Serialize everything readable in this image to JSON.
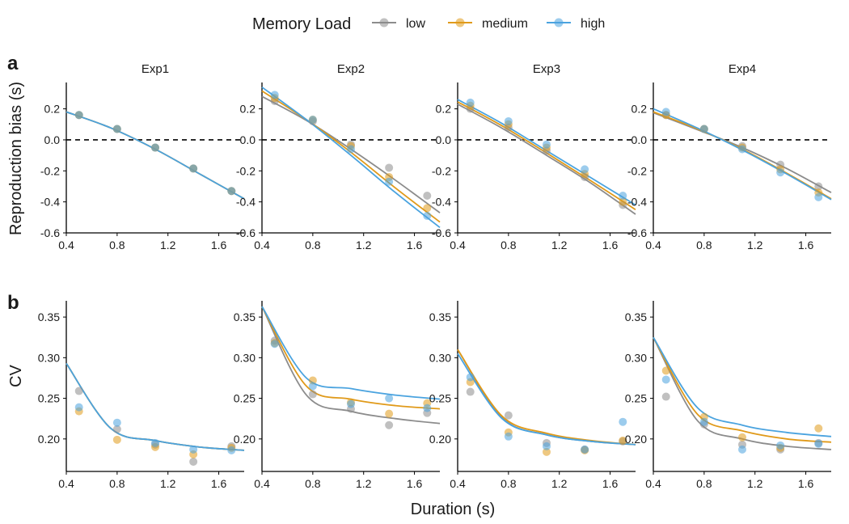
{
  "legend": {
    "title": "Memory Load",
    "placement": "top-center",
    "items": [
      {
        "label": "low",
        "color": "#8c8c8c"
      },
      {
        "label": "medium",
        "color": "#e09a1a"
      },
      {
        "label": "high",
        "color": "#4aa3df"
      }
    ]
  },
  "panel_labels": [
    "a",
    "b"
  ],
  "xlabel": "Duration (s)",
  "chart_data": [
    {
      "type": "line",
      "id": "a",
      "ylabel": "Reproduction bias (s)",
      "facets": [
        "Exp1",
        "Exp2",
        "Exp3",
        "Exp4"
      ],
      "xlim": [
        0.4,
        1.8
      ],
      "ylim": [
        -0.6,
        0.37
      ],
      "xticks": [
        0.4,
        0.8,
        1.2,
        1.6
      ],
      "yticks": [
        -0.6,
        -0.4,
        -0.2,
        0.0,
        0.2
      ],
      "yticklabels": [
        "-0.6",
        "-0.4",
        "-0.2",
        "0.0",
        "0.2"
      ],
      "reference_line": {
        "y": 0,
        "style": "dashed"
      },
      "x_points": [
        0.5,
        0.8,
        1.1,
        1.4,
        1.7
      ],
      "panels": [
        {
          "facet": "Exp1",
          "series": [
            {
              "name": "low",
              "points": [
                0.16,
                0.07,
                -0.05,
                -0.185,
                -0.33
              ],
              "curve": [
                0.18,
                0.077,
                -0.06,
                -0.22,
                -0.38
              ]
            },
            {
              "name": "medium",
              "points": [
                0.16,
                0.07,
                -0.05,
                -0.185,
                -0.33
              ],
              "curve": [
                0.18,
                0.077,
                -0.06,
                -0.22,
                -0.38
              ]
            },
            {
              "name": "high",
              "points": [
                0.16,
                0.07,
                -0.05,
                -0.185,
                -0.33
              ],
              "curve": [
                0.18,
                0.077,
                -0.06,
                -0.22,
                -0.38
              ]
            }
          ]
        },
        {
          "facet": "Exp2",
          "series": [
            {
              "name": "low",
              "points": [
                0.25,
                0.12,
                -0.03,
                -0.18,
                -0.36
              ],
              "curve": [
                0.28,
                0.125,
                -0.06,
                -0.26,
                -0.47
              ]
            },
            {
              "name": "medium",
              "points": [
                0.27,
                0.13,
                -0.04,
                -0.24,
                -0.44
              ],
              "curve": [
                0.315,
                0.13,
                -0.08,
                -0.31,
                -0.53
              ]
            },
            {
              "name": "high",
              "points": [
                0.29,
                0.13,
                -0.06,
                -0.27,
                -0.49
              ],
              "curve": [
                0.34,
                0.13,
                -0.1,
                -0.34,
                -0.565
              ]
            }
          ]
        },
        {
          "facet": "Exp3",
          "series": [
            {
              "name": "low",
              "points": [
                0.2,
                0.08,
                -0.07,
                -0.24,
                -0.42
              ],
              "curve": [
                0.23,
                0.075,
                -0.1,
                -0.28,
                -0.48
              ]
            },
            {
              "name": "medium",
              "points": [
                0.22,
                0.1,
                -0.05,
                -0.22,
                -0.4
              ],
              "curve": [
                0.245,
                0.09,
                -0.085,
                -0.265,
                -0.45
              ]
            },
            {
              "name": "high",
              "points": [
                0.24,
                0.12,
                -0.03,
                -0.19,
                -0.36
              ],
              "curve": [
                0.26,
                0.105,
                -0.07,
                -0.245,
                -0.42
              ]
            }
          ]
        },
        {
          "facet": "Exp4",
          "series": [
            {
              "name": "low",
              "points": [
                0.16,
                0.07,
                -0.04,
                -0.16,
                -0.3
              ],
              "curve": [
                0.175,
                0.065,
                -0.05,
                -0.185,
                -0.34
              ]
            },
            {
              "name": "medium",
              "points": [
                0.16,
                0.07,
                -0.05,
                -0.19,
                -0.34
              ],
              "curve": [
                0.18,
                0.07,
                -0.06,
                -0.215,
                -0.38
              ]
            },
            {
              "name": "high",
              "points": [
                0.18,
                0.07,
                -0.06,
                -0.21,
                -0.37
              ],
              "curve": [
                0.2,
                0.075,
                -0.065,
                -0.22,
                -0.385
              ]
            }
          ]
        }
      ]
    },
    {
      "type": "line",
      "id": "b",
      "ylabel": "CV",
      "facets": [
        "Exp1",
        "Exp2",
        "Exp3",
        "Exp4"
      ],
      "xlim": [
        0.4,
        1.8
      ],
      "ylim": [
        0.16,
        0.37
      ],
      "xticks": [
        0.4,
        0.8,
        1.2,
        1.6
      ],
      "yticks": [
        0.2,
        0.25,
        0.3,
        0.35
      ],
      "yticklabels": [
        "0.20",
        "0.25",
        "0.30",
        "0.35"
      ],
      "x_points": [
        0.5,
        0.8,
        1.1,
        1.4,
        1.7
      ],
      "panels": [
        {
          "facet": "Exp1",
          "series": [
            {
              "name": "low",
              "points": [
                0.259,
                0.212,
                0.193,
                0.172,
                0.191
              ],
              "curve": [
                0.293,
                0.213,
                0.198,
                0.19,
                0.186
              ]
            },
            {
              "name": "medium",
              "points": [
                0.234,
                0.199,
                0.19,
                0.181,
                0.189
              ],
              "curve": [
                0.293,
                0.213,
                0.198,
                0.19,
                0.186
              ]
            },
            {
              "name": "high",
              "points": [
                0.239,
                0.22,
                0.195,
                0.187,
                0.186
              ],
              "curve": [
                0.293,
                0.213,
                0.198,
                0.19,
                0.186
              ]
            }
          ]
        },
        {
          "facet": "Exp2",
          "series": [
            {
              "name": "low",
              "points": [
                0.321,
                0.255,
                0.237,
                0.217,
                0.232
              ],
              "curve": [
                0.363,
                0.254,
                0.234,
                0.225,
                0.219
              ]
            },
            {
              "name": "medium",
              "points": [
                0.318,
                0.272,
                0.245,
                0.231,
                0.244
              ],
              "curve": [
                0.363,
                0.265,
                0.249,
                0.241,
                0.237
              ]
            },
            {
              "name": "high",
              "points": [
                0.317,
                0.265,
                0.243,
                0.25,
                0.238
              ],
              "curve": [
                0.363,
                0.275,
                0.262,
                0.254,
                0.249
              ]
            }
          ]
        },
        {
          "facet": "Exp3",
          "series": [
            {
              "name": "low",
              "points": [
                0.258,
                0.229,
                0.195,
                0.187,
                0.197
              ],
              "curve": [
                0.31,
                0.226,
                0.205,
                0.197,
                0.193
              ]
            },
            {
              "name": "medium",
              "points": [
                0.27,
                0.208,
                0.184,
                0.186,
                0.198
              ],
              "curve": [
                0.31,
                0.228,
                0.207,
                0.198,
                0.193
              ]
            },
            {
              "name": "high",
              "points": [
                0.276,
                0.203,
                0.191,
                0.187,
                0.221
              ],
              "curve": [
                0.305,
                0.225,
                0.205,
                0.197,
                0.193
              ]
            }
          ]
        },
        {
          "facet": "Exp4",
          "series": [
            {
              "name": "low",
              "points": [
                0.252,
                0.218,
                0.193,
                0.187,
                0.195
              ],
              "curve": [
                0.325,
                0.222,
                0.2,
                0.191,
                0.187
              ]
            },
            {
              "name": "medium",
              "points": [
                0.284,
                0.227,
                0.202,
                0.189,
                0.213
              ],
              "curve": [
                0.325,
                0.23,
                0.21,
                0.2,
                0.196
              ]
            },
            {
              "name": "high",
              "points": [
                0.273,
                0.221,
                0.187,
                0.192,
                0.194
              ],
              "curve": [
                0.325,
                0.238,
                0.217,
                0.208,
                0.203
              ]
            }
          ]
        }
      ]
    }
  ]
}
